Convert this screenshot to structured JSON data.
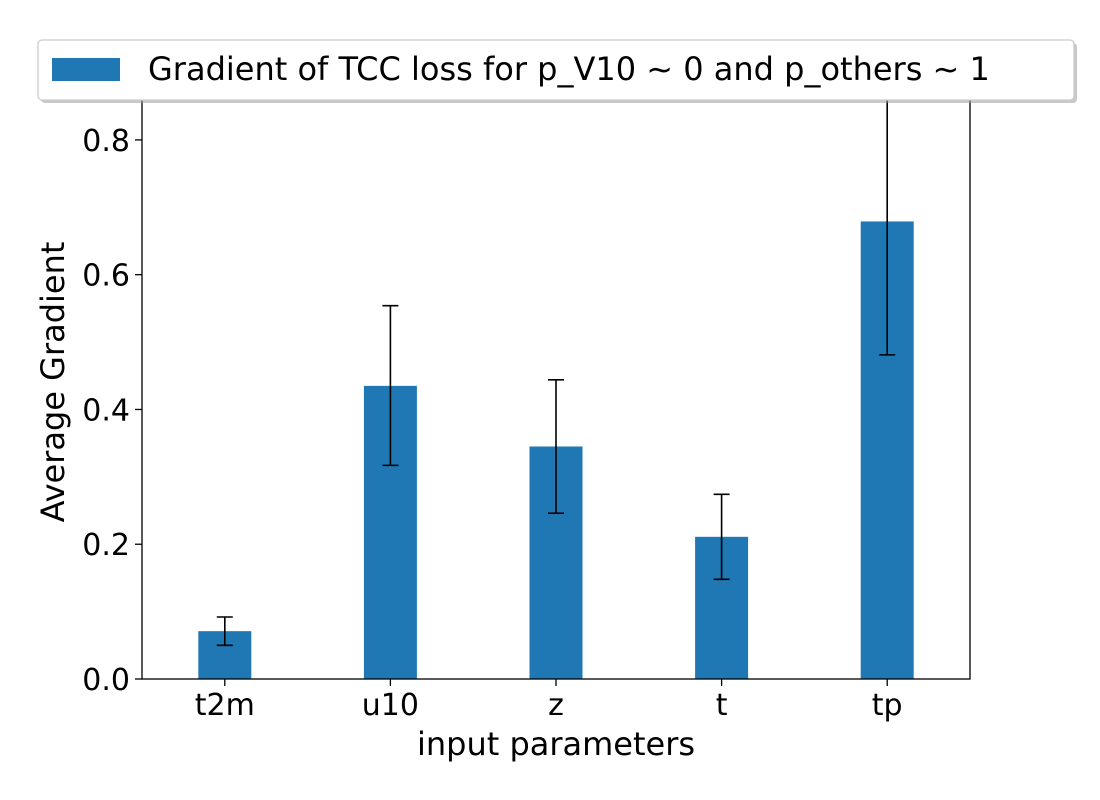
{
  "chart_data": {
    "type": "bar",
    "title": "",
    "xlabel": "input parameters",
    "ylabel": "Average Gradient",
    "categories": [
      "t2m",
      "u10",
      "z",
      "t",
      "tp"
    ],
    "series": [
      {
        "name": "Gradient of TCC loss for p_V10 ~ 0 and p_others ~ 1",
        "values": [
          0.071,
          0.435,
          0.345,
          0.211,
          0.679
        ],
        "error_low": [
          0.05,
          0.317,
          0.246,
          0.148,
          0.481
        ],
        "error_high": [
          0.092,
          0.554,
          0.444,
          0.274,
          0.876
        ],
        "color": "#1f77b4"
      }
    ],
    "ylim": [
      0,
      0.88
    ],
    "yticks": [
      0.0,
      0.2,
      0.4,
      0.6,
      0.8
    ],
    "ytick_labels": [
      "0.0",
      "0.2",
      "0.4",
      "0.6",
      "0.8"
    ],
    "grid": false,
    "legend_position": "top"
  }
}
